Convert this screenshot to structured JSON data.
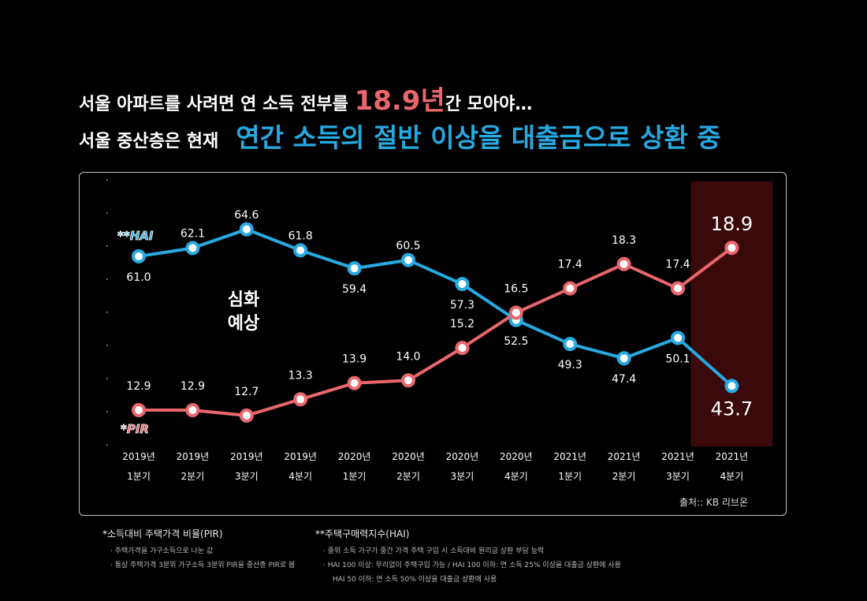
{
  "headline": {
    "line1_pre": "서울 아파트를 사려면 연 소득 전부를 ",
    "line1_highlight": "18.9년",
    "line1_post": "간 모아야…",
    "line2_pre": "서울 중산층은 현재",
    "line2_highlight": "연간 소득의 절반 이상을 대출금으로 상환 중"
  },
  "colors": {
    "pir": "#e9676c",
    "hai": "#27a9e1",
    "highlight_bg": "#3a0a0a"
  },
  "chart_data": {
    "type": "line",
    "categories": [
      [
        "2019년",
        "1분기"
      ],
      [
        "2019년",
        "2분기"
      ],
      [
        "2019년",
        "3분기"
      ],
      [
        "2019년",
        "4분기"
      ],
      [
        "2020년",
        "1분기"
      ],
      [
        "2020년",
        "2분기"
      ],
      [
        "2020년",
        "3분기"
      ],
      [
        "2020년",
        "4분기"
      ],
      [
        "2021년",
        "1분기"
      ],
      [
        "2021년",
        "2분기"
      ],
      [
        "2021년",
        "3분기"
      ],
      [
        "2021년",
        "4분기"
      ]
    ],
    "series": [
      {
        "name": "**HAI",
        "color": "#27a9e1",
        "values": [
          61.0,
          62.1,
          64.6,
          61.8,
          59.4,
          60.5,
          57.3,
          52.5,
          49.3,
          47.4,
          50.1,
          43.7
        ],
        "labels": [
          "61.0",
          "62.1",
          "64.6",
          "61.8",
          "59.4",
          "60.5",
          "57.3",
          "52.5",
          "49.3",
          "47.4",
          "50.1",
          "43.7"
        ]
      },
      {
        "name": "*PIR",
        "color": "#e9676c",
        "values": [
          12.9,
          12.9,
          12.7,
          13.3,
          13.9,
          14.0,
          15.2,
          16.5,
          17.4,
          18.3,
          17.4,
          18.9
        ],
        "labels": [
          "12.9",
          "12.9",
          "12.7",
          "13.3",
          "13.9",
          "14.0",
          "15.2",
          "16.5",
          "17.4",
          "18.3",
          "17.4",
          "18.9"
        ]
      }
    ],
    "highlight_category": 11,
    "annotation": [
      "심화",
      "예상"
    ],
    "source": "출처:: KB 리브온"
  },
  "notes": {
    "pir": {
      "title": "*소득대비 주택가격 비율(PIR)",
      "lines": [
        "· 주택가격을 가구소득으로 나눈 값",
        "· 통상 주택가격 3분위 가구소득 3분위 PIR을 중산층 PIR로 봄"
      ]
    },
    "hai": {
      "title": "**주택구매력지수(HAI)",
      "lines": [
        "· 중위 소득 가구가 중간 가격 주택 구입 시 소득대비 원리금 상환 부담 능력",
        "· HAI 100 이상: 무리없이 주택구입 가능 / HAI 100 이하: 연 소득 25% 이상을 대출금 상환에 사용",
        "  HAI 50 이하: 연 소득 50% 이상을 대출금 상환에 사용"
      ]
    }
  }
}
